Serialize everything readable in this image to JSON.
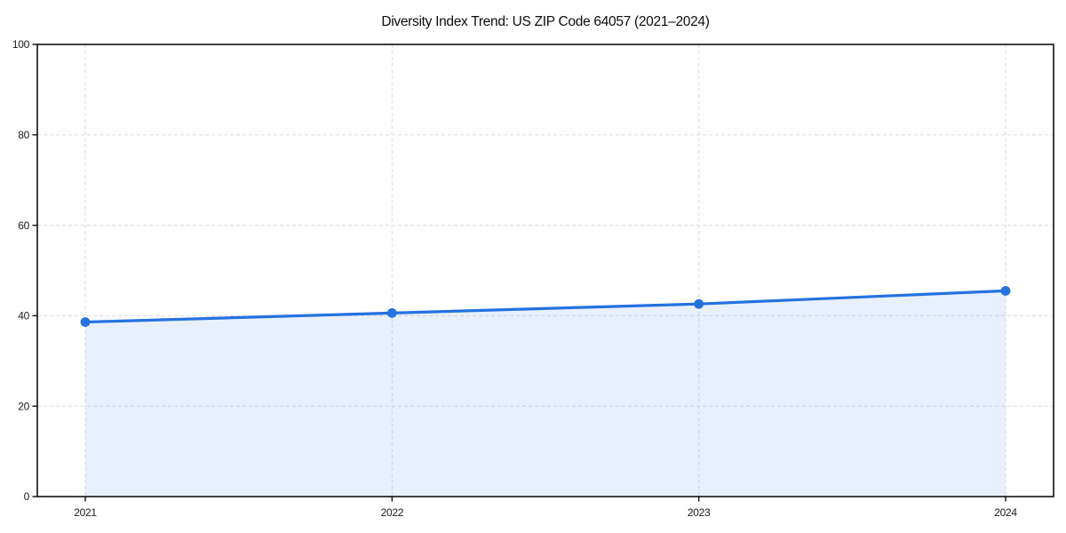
{
  "chart_data": {
    "type": "line",
    "title": "Diversity Index Trend: US ZIP Code 64057 (2021–2024)",
    "x": [
      2021,
      2022,
      2023,
      2024
    ],
    "xticks": [
      "2021",
      "2022",
      "2023",
      "2024"
    ],
    "series": [
      {
        "name": "Diversity Index",
        "values": [
          38.6,
          40.6,
          42.6,
          45.5
        ],
        "marker": "circle",
        "area_fill": true
      }
    ],
    "xlabel": "",
    "ylabel": "",
    "ylim": [
      0,
      100
    ],
    "yticks": [
      0,
      20,
      40,
      60,
      80,
      100
    ],
    "grid": "dashed-both-axes",
    "legend": "none",
    "colors": {
      "line": "#2472e0",
      "marker": "#2472e0",
      "area_fill": "rgba(36,114,224,0.11)",
      "grid": "#e0e0e0",
      "spine": "#111111",
      "tick_text": "#1a1a1a",
      "background": "#ffffff"
    }
  }
}
